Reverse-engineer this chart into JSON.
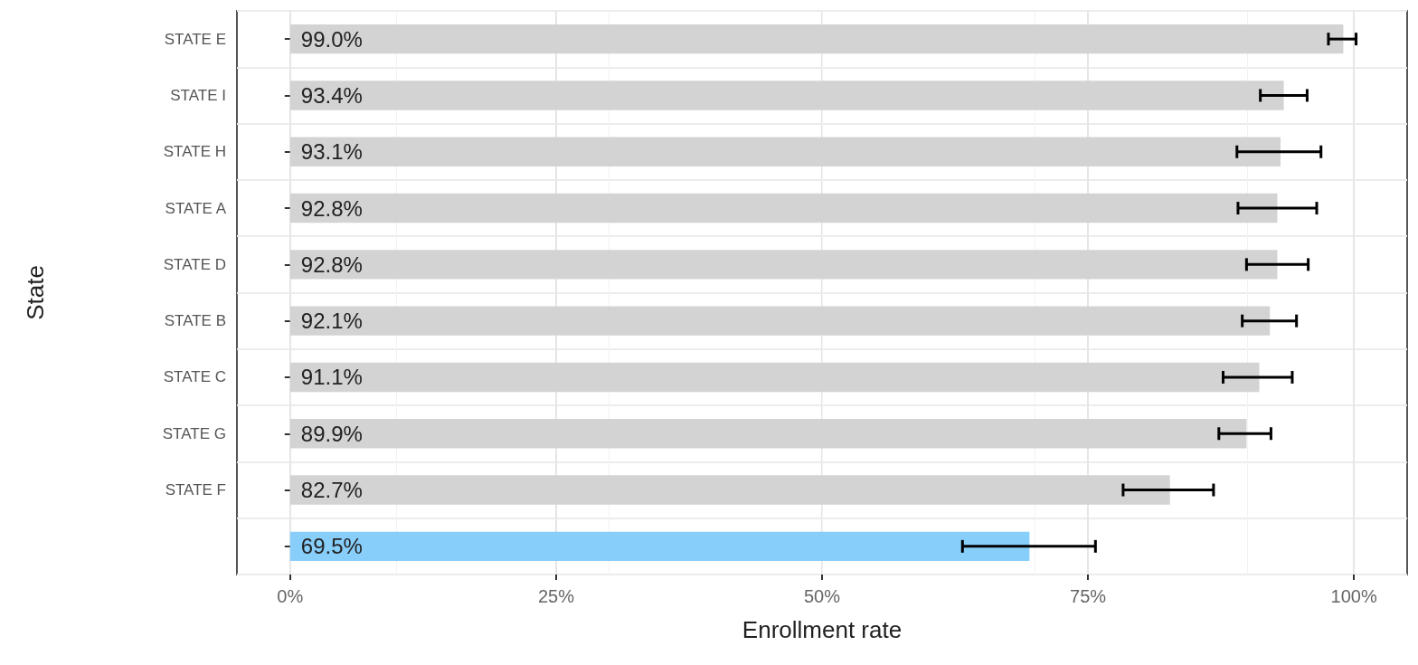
{
  "chart_data": {
    "type": "bar",
    "orientation": "horizontal",
    "xlabel": "Enrollment rate",
    "ylabel": "State",
    "categories": [
      "STATE E",
      "STATE I",
      "STATE H",
      "STATE A",
      "STATE D",
      "STATE B",
      "STATE C",
      "STATE G",
      "STATE F",
      null
    ],
    "values": [
      99.0,
      93.4,
      93.1,
      92.8,
      92.8,
      92.1,
      91.1,
      89.9,
      82.7,
      69.5
    ],
    "colors": [
      "#d3d3d3",
      "#d3d3d3",
      "#d3d3d3",
      "#d3d3d3",
      "#d3d3d3",
      "#d3d3d3",
      "#d3d3d3",
      "#d3d3d3",
      "#d3d3d3",
      "#87cefa"
    ],
    "value_labels": [
      "99.0%",
      "93.4%",
      "93.1%",
      "92.8%",
      "92.8%",
      "92.1%",
      "91.1%",
      "89.9%",
      "82.7%",
      "69.5%"
    ],
    "errors": [
      [
        97.6,
        100.2
      ],
      [
        91.2,
        95.6
      ],
      [
        89.0,
        96.9
      ],
      [
        89.1,
        96.5
      ],
      [
        89.9,
        95.7
      ],
      [
        89.5,
        94.6
      ],
      [
        87.7,
        94.2
      ],
      [
        87.3,
        92.2
      ],
      [
        78.3,
        86.8
      ],
      [
        63.2,
        75.7
      ]
    ],
    "xlim": [
      -5,
      105
    ],
    "xticks": [
      {
        "value": 0,
        "label": "0%"
      },
      {
        "value": 25,
        "label": "25%"
      },
      {
        "value": 50,
        "label": "50%"
      },
      {
        "value": 75,
        "label": "75%"
      },
      {
        "value": 100,
        "label": "100%"
      }
    ],
    "grid": true
  }
}
